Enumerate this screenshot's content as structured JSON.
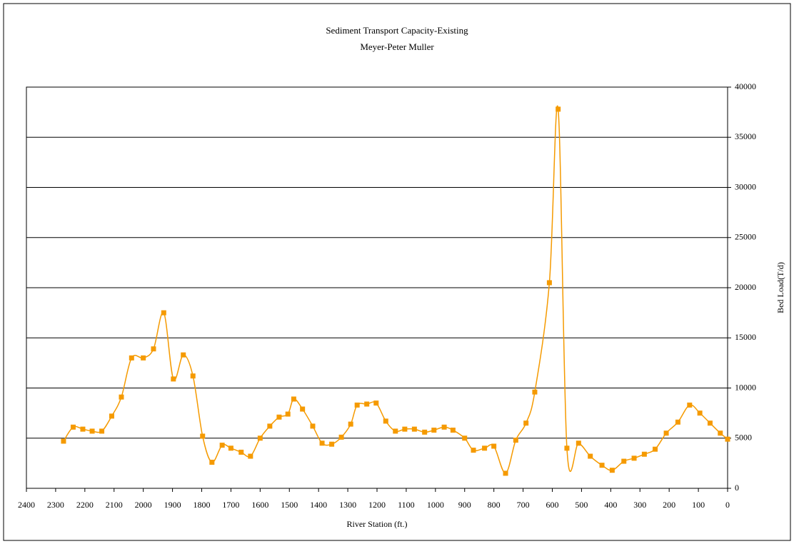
{
  "chart_data": {
    "type": "line",
    "title": "Sediment Transport Capacity-Existing",
    "subtitle": "Meyer-Peter Muller",
    "x_label": "River Station (ft.)",
    "y_label": "Bed Load(T/d)",
    "x": [
      2273,
      2240,
      2207,
      2175,
      2142,
      2108,
      2075,
      2040,
      2000,
      1965,
      1930,
      1897,
      1863,
      1830,
      1797,
      1765,
      1730,
      1700,
      1665,
      1633,
      1600,
      1567,
      1535,
      1505,
      1485,
      1455,
      1420,
      1388,
      1355,
      1322,
      1290,
      1268,
      1235,
      1203,
      1170,
      1137,
      1105,
      1072,
      1037,
      1005,
      970,
      940,
      900,
      870,
      832,
      800,
      760,
      725,
      690,
      660,
      610,
      580,
      550,
      510,
      470,
      430,
      395,
      355,
      320,
      285,
      248,
      210,
      170,
      130,
      95,
      60,
      25,
      0
    ],
    "series": [
      {
        "name": "Bed Load",
        "color": "#f59a00",
        "values": [
          4700,
          6100,
          5900,
          5700,
          5700,
          7200,
          9100,
          13000,
          13000,
          13900,
          17500,
          10900,
          13300,
          11200,
          5200,
          2600,
          4300,
          4000,
          3600,
          3200,
          5000,
          6200,
          7100,
          7400,
          8900,
          7900,
          6200,
          4500,
          4400,
          5100,
          6400,
          8300,
          8400,
          8500,
          6700,
          5700,
          5900,
          5900,
          5600,
          5800,
          6100,
          5800,
          5000,
          3800,
          4000,
          4200,
          1500,
          4800,
          6500,
          9600,
          20500,
          37800,
          4000,
          4500,
          3200,
          2300,
          1800,
          2700,
          3000,
          3400,
          3900,
          5500,
          6600,
          8300,
          7500,
          6500,
          5500,
          4900
        ]
      }
    ],
    "xlim": [
      2400,
      0
    ],
    "xticks": [
      2400,
      2300,
      2200,
      2100,
      2000,
      1900,
      1800,
      1700,
      1600,
      1500,
      1400,
      1300,
      1200,
      1100,
      1000,
      900,
      800,
      700,
      600,
      500,
      400,
      300,
      200,
      100,
      0
    ],
    "ylim": [
      0,
      40000
    ],
    "yticks": [
      0,
      5000,
      10000,
      15000,
      20000,
      25000,
      30000,
      35000,
      40000
    ],
    "grid": true
  }
}
